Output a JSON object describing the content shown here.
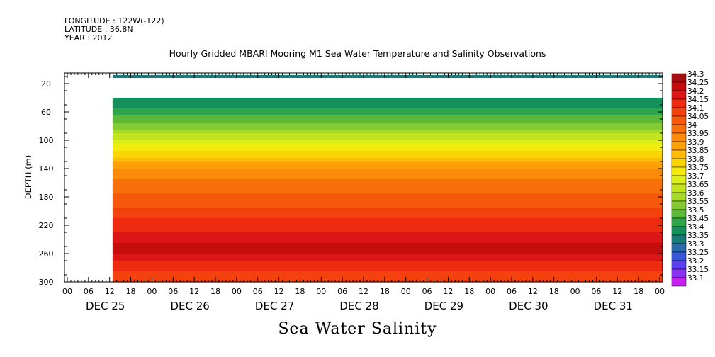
{
  "header": {
    "longitude": "LONGITUDE : 122W(-122)",
    "latitude": "LATITUDE : 36.8N",
    "year": "YEAR : 2012"
  },
  "chart_data": {
    "type": "heatmap",
    "title": "Hourly Gridded MBARI Mooring M1 Sea Water Temperature and Salinity Observations",
    "xlabel": "Sea Water Salinity",
    "ylabel": "DEPTH (m)",
    "x_hour_ticks": [
      "00",
      "06",
      "12",
      "18",
      "00",
      "06",
      "12",
      "18",
      "00",
      "06",
      "12",
      "18",
      "00",
      "06",
      "12",
      "18",
      "00",
      "06",
      "12",
      "18",
      "00",
      "06",
      "12",
      "18",
      "00",
      "06",
      "12",
      "18",
      "00"
    ],
    "x_day_labels": [
      "DEC 25",
      "DEC 26",
      "DEC 27",
      "DEC 28",
      "DEC 29",
      "DEC 30",
      "DEC 31"
    ],
    "y_ticks": [
      20,
      60,
      100,
      140,
      180,
      220,
      260,
      300
    ],
    "ylim": [
      300,
      5
    ],
    "data_start": "DEC 25 06",
    "data_end": "DEC 31 24",
    "depth_rows": [
      {
        "depth": 10,
        "salinity": 33.35
      },
      {
        "depth": 40,
        "salinity": 33.38
      },
      {
        "depth": 60,
        "salinity": 33.45
      },
      {
        "depth": 80,
        "salinity": 33.55
      },
      {
        "depth": 100,
        "salinity": 33.68
      },
      {
        "depth": 120,
        "salinity": 33.8
      },
      {
        "depth": 140,
        "salinity": 33.92
      },
      {
        "depth": 160,
        "salinity": 34.0
      },
      {
        "depth": 180,
        "salinity": 34.03
      },
      {
        "depth": 200,
        "salinity": 34.1
      },
      {
        "depth": 220,
        "salinity": 34.15
      },
      {
        "depth": 240,
        "salinity": 34.2
      },
      {
        "depth": 250,
        "salinity": 34.26
      },
      {
        "depth": 270,
        "salinity": 34.18
      },
      {
        "depth": 300,
        "salinity": 34.08
      }
    ],
    "colorbar": {
      "levels": [
        "34.3",
        "34.25",
        "34.2",
        "34.15",
        "34.1",
        "34.05",
        "34",
        "33.95",
        "33.9",
        "33.85",
        "33.8",
        "33.75",
        "33.7",
        "33.65",
        "33.6",
        "33.55",
        "33.5",
        "33.45",
        "33.4",
        "33.35",
        "33.3",
        "33.25",
        "33.2",
        "33.15",
        "33.1"
      ],
      "colors": [
        "#a50f0f",
        "#c40d0d",
        "#dc1616",
        "#ee2a10",
        "#f4420e",
        "#f6580c",
        "#f8700a",
        "#fa8a08",
        "#fca206",
        "#feba05",
        "#fcd406",
        "#f4ea0c",
        "#dcef18",
        "#c2e41e",
        "#a6d828",
        "#84ca30",
        "#5cb838",
        "#2ea548",
        "#14915a",
        "#1a7a7a",
        "#2a6aa8",
        "#3856d8",
        "#5a40ee",
        "#8a30f0",
        "#c81ef4"
      ]
    }
  }
}
